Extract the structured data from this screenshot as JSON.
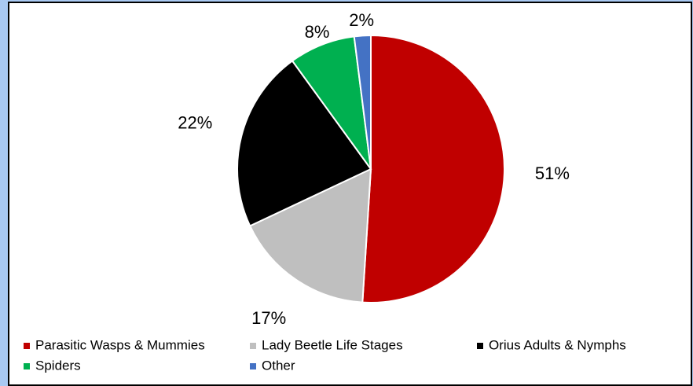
{
  "chart_data": {
    "type": "pie",
    "categories": [
      "Parasitic Wasps & Mummies",
      "Lady Beetle Life Stages",
      "Orius Adults & Nymphs",
      "Spiders",
      "Other"
    ],
    "values": [
      51,
      17,
      22,
      8,
      2
    ],
    "value_labels": [
      "51%",
      "17%",
      "22%",
      "8%",
      "2%"
    ],
    "colors": [
      "#c00000",
      "#bfbfbf",
      "#000000",
      "#00b050",
      "#4472c4"
    ],
    "legend": "bottom"
  }
}
